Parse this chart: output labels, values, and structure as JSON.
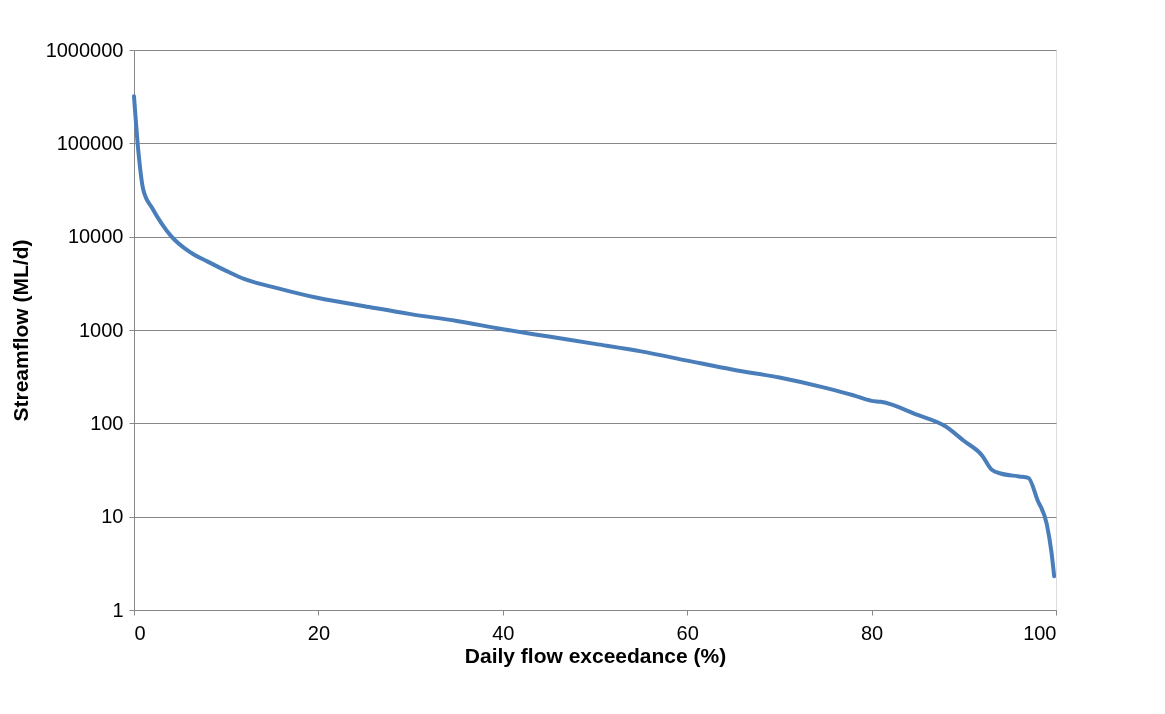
{
  "chart_data": {
    "type": "line",
    "xlabel": "Daily flow exceedance (%)",
    "ylabel": "Streamflow (ML/d)",
    "x": [
      0,
      0.5,
      1,
      2,
      3,
      4,
      6,
      8,
      10,
      12,
      15,
      20,
      25,
      30,
      35,
      40,
      45,
      50,
      55,
      60,
      65,
      70,
      75,
      78,
      80,
      81,
      85,
      88,
      90,
      92,
      93,
      94,
      96,
      97,
      98,
      99,
      99.5,
      99.8
    ],
    "series": [
      {
        "color": "#4a7ebb",
        "values": [
          320000,
          77000,
          32000,
          20000,
          13800,
          10200,
          6900,
          5400,
          4300,
          3500,
          2900,
          2200,
          1800,
          1480,
          1250,
          1020,
          850,
          710,
          590,
          470,
          375,
          310,
          240,
          200,
          174,
          170,
          123,
          93,
          65,
          45,
          32,
          29,
          27,
          26,
          15,
          8.3,
          4.2,
          2.3
        ]
      }
    ],
    "xlim": [
      0,
      100
    ],
    "xticks": [
      0,
      20,
      40,
      60,
      80,
      100
    ],
    "ylim": [
      1,
      1000000
    ],
    "yticks": [
      1,
      10,
      100,
      1000,
      10000,
      100000,
      1000000
    ],
    "log": "y",
    "grid": "y",
    "marker": "none",
    "line_style": "solid"
  }
}
